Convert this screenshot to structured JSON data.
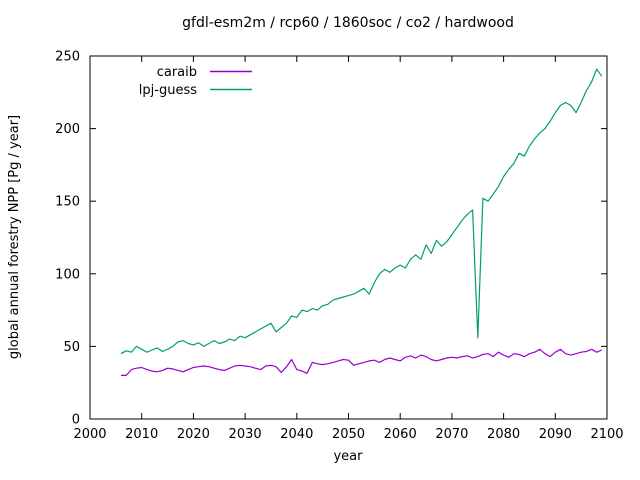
{
  "chart_data": {
    "type": "line",
    "title": "gfdl-esm2m / rcp60 / 1860soc / co2 / hardwood",
    "xlabel": "year",
    "ylabel": "global annual forestry NPP [Pg / year]",
    "xlim": [
      2000,
      2100
    ],
    "ylim": [
      0,
      250
    ],
    "x_ticks": [
      2000,
      2010,
      2020,
      2030,
      2040,
      2050,
      2060,
      2070,
      2080,
      2090,
      2100
    ],
    "y_ticks": [
      0,
      50,
      100,
      150,
      200,
      250
    ],
    "grid": false,
    "legend_position": "top-left-inside",
    "background_color": "#ffffff",
    "axis_color": "#000000",
    "series": [
      {
        "name": "caraib",
        "color": "#9400d3",
        "x_start": 2006,
        "x_step": 1,
        "values": [
          30,
          30,
          34,
          35,
          35.5,
          34,
          33,
          32.5,
          33.5,
          35,
          34.5,
          33.5,
          32.5,
          34,
          35.5,
          36,
          36.5,
          36,
          35,
          34,
          33.5,
          35,
          36.5,
          37,
          36.5,
          36,
          35,
          34,
          36.5,
          37,
          36,
          32,
          36,
          41,
          34,
          33,
          31.5,
          39,
          38,
          37.5,
          38,
          39,
          40,
          41,
          40.5,
          37,
          38,
          39,
          40,
          40.5,
          39,
          41,
          42,
          41,
          40,
          42.5,
          43.5,
          42,
          44,
          43,
          41,
          40,
          41,
          42,
          42.5,
          42,
          43,
          43.5,
          42,
          43,
          44.5,
          45,
          43,
          46,
          44,
          42.5,
          45,
          44.5,
          43,
          45,
          46,
          48,
          45,
          43,
          46,
          48,
          45,
          44,
          45,
          46,
          46.5,
          48,
          46,
          47.5
        ]
      },
      {
        "name": "lpj-guess",
        "color": "#009e73",
        "x_start": 2006,
        "x_step": 1,
        "values": [
          45,
          47,
          46,
          50,
          48,
          46,
          47.5,
          49,
          46.5,
          48,
          50,
          53,
          54,
          52,
          51,
          52.5,
          50,
          52,
          54,
          52,
          53,
          55,
          54,
          57,
          56,
          58,
          60,
          62,
          64,
          66,
          60,
          63,
          66,
          71,
          70,
          75,
          74,
          76,
          75,
          78,
          79,
          82,
          83,
          84,
          85,
          86,
          88,
          90,
          86,
          94,
          100,
          103,
          101,
          104,
          106,
          104,
          110,
          113,
          110,
          120,
          114,
          123,
          119,
          122,
          127,
          132,
          137,
          141,
          144,
          56,
          152,
          150,
          155,
          160,
          167,
          172,
          176,
          183,
          181,
          188,
          193,
          197,
          200,
          205,
          211,
          216,
          218,
          216,
          211,
          218,
          226,
          232,
          241,
          236
        ]
      }
    ]
  }
}
